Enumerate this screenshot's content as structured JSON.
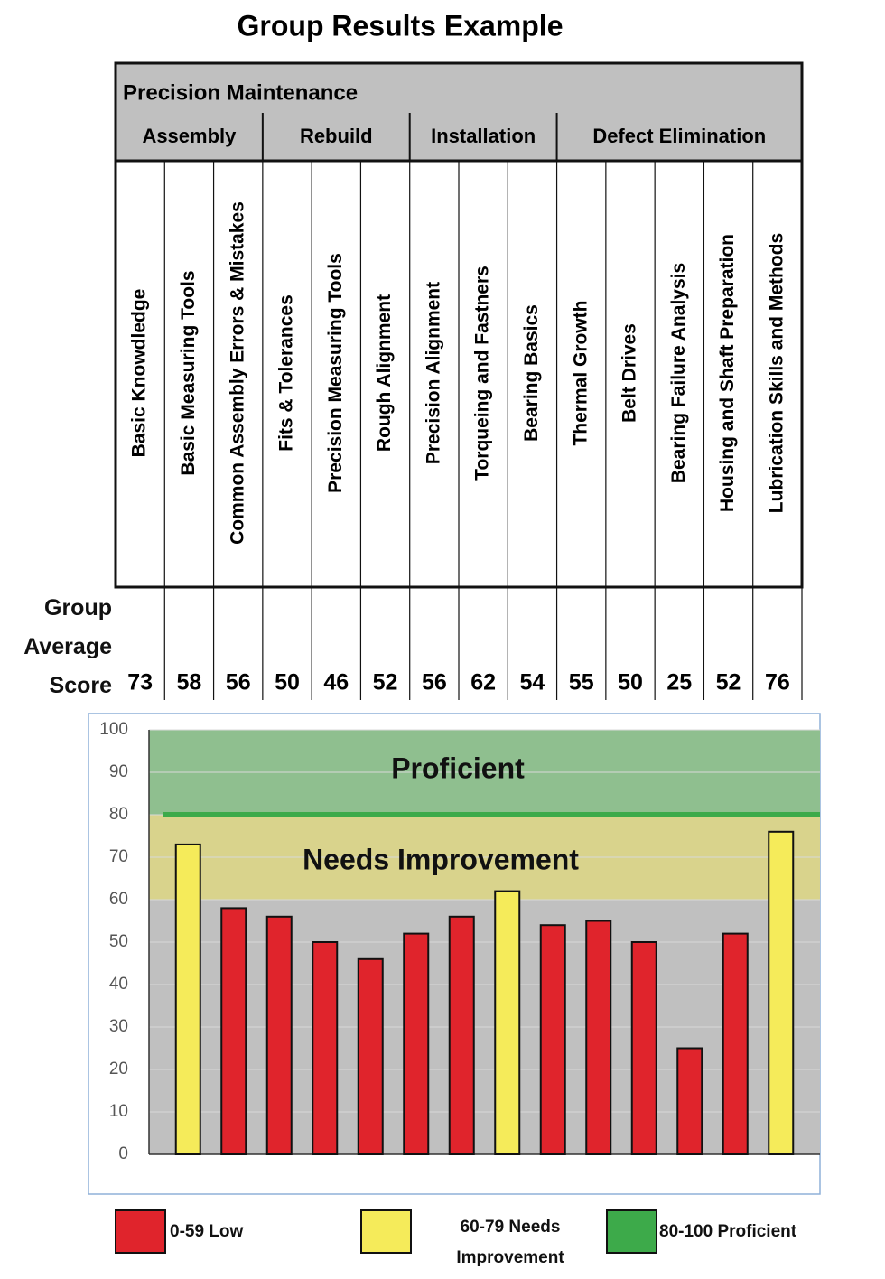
{
  "chart_data": {
    "type": "bar",
    "title": "Group Results Example",
    "header": "Precision Maintenance",
    "row_label": "Group Average Score",
    "category_groups": [
      "Assembly",
      "Assembly",
      "Assembly",
      "Rebuild",
      "Rebuild",
      "Rebuild",
      "Installation",
      "Installation",
      "Installation",
      "Defect Elimination",
      "Defect Elimination",
      "Defect Elimination",
      "Defect Elimination",
      "Defect Elimination"
    ],
    "categories": [
      "Basic Knowdledge",
      "Basic Measuring Tools",
      "Common Assembly Errors & Mistakes",
      "Fits & Tolerances",
      "Precision Measuring Tools",
      "Rough Alignment",
      "Precision Alignment",
      "Torqueing and Fastners",
      "Bearing Basics",
      "Thermal Growth",
      "Belt Drives",
      "Bearing Failure Analysis",
      "Housing and Shaft Preparation",
      "Lubrication Skills and Methods"
    ],
    "values": [
      73,
      58,
      56,
      50,
      46,
      52,
      56,
      62,
      54,
      55,
      50,
      25,
      52,
      76
    ],
    "colors": [
      "#f5eb5a",
      "#e0242c",
      "#e0242c",
      "#e0242c",
      "#e0242c",
      "#e0242c",
      "#e0242c",
      "#f5eb5a",
      "#e0242c",
      "#e0242c",
      "#e0242c",
      "#e0242c",
      "#e0242c",
      "#f5eb5a"
    ],
    "ylim": [
      0,
      100
    ],
    "yticks": [
      0,
      10,
      20,
      30,
      40,
      50,
      60,
      70,
      80,
      90,
      100
    ],
    "grid": true,
    "bands": [
      {
        "label": "Proficient",
        "from": 80,
        "to": 100,
        "color": "#8fbf8f"
      },
      {
        "label": "Needs Improvement",
        "from": 60,
        "to": 80,
        "color": "#d9d38c"
      }
    ],
    "threshold": {
      "value": 80,
      "color": "#3daa4a"
    },
    "legend": [
      {
        "name": "0-59 Low",
        "color": "#e0242c"
      },
      {
        "name": "60-79 Needs Improvement",
        "color": "#f5eb5a"
      },
      {
        "name": "80-100 Proficient",
        "color": "#3daa4a"
      }
    ]
  }
}
